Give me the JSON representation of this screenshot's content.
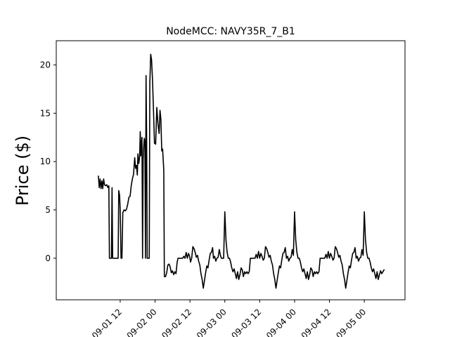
{
  "chart_data": {
    "type": "line",
    "title": "NodeMCC: NAVY35R_7_B1",
    "ylabel": "Price ($)",
    "xlabel": "",
    "x_unit": "hours since 2023-09-01 00",
    "xlim": [
      -10,
      110
    ],
    "ylim": [
      -4.3,
      22.5
    ],
    "grid": false,
    "legend": "none",
    "line_color": "#000000",
    "yticks": [
      0,
      5,
      10,
      15,
      20
    ],
    "xticks": [
      {
        "x": 12,
        "label": "09-01 12"
      },
      {
        "x": 24,
        "label": "09-02 00"
      },
      {
        "x": 36,
        "label": "09-02 12"
      },
      {
        "x": 48,
        "label": "09-03 00"
      },
      {
        "x": 60,
        "label": "09-03 12"
      },
      {
        "x": 72,
        "label": "09-04 00"
      },
      {
        "x": 84,
        "label": "09-04 12"
      },
      {
        "x": 96,
        "label": "09-05 00"
      }
    ],
    "series": [
      {
        "name": "",
        "points": [
          [
            4.5,
            8.5
          ],
          [
            4.8,
            7.3
          ],
          [
            5.1,
            8.2
          ],
          [
            5.4,
            7.2
          ],
          [
            5.7,
            8.0
          ],
          [
            6.0,
            7.2
          ],
          [
            6.3,
            8.2
          ],
          [
            6.6,
            7.6
          ],
          [
            7.0,
            7.5
          ],
          [
            7.4,
            7.6
          ],
          [
            7.8,
            7.3
          ],
          [
            8.1,
            7.5
          ],
          [
            8.3,
            0
          ],
          [
            9.0,
            0
          ],
          [
            9.2,
            7.3
          ],
          [
            9.4,
            0
          ],
          [
            11.3,
            0
          ],
          [
            11.5,
            7.0
          ],
          [
            11.8,
            6.5
          ],
          [
            12.0,
            5.0
          ],
          [
            12.3,
            0
          ],
          [
            12.6,
            0
          ],
          [
            12.9,
            4.7
          ],
          [
            13.3,
            5.0
          ],
          [
            13.8,
            4.9
          ],
          [
            14.2,
            5.1
          ],
          [
            14.6,
            5.6
          ],
          [
            15.0,
            6.3
          ],
          [
            15.4,
            6.4
          ],
          [
            15.8,
            7.5
          ],
          [
            16.2,
            8.2
          ],
          [
            16.6,
            8.7
          ],
          [
            17.0,
            10.4
          ],
          [
            17.3,
            9.3
          ],
          [
            17.6,
            9.6
          ],
          [
            17.9,
            8.6
          ],
          [
            18.1,
            10.8
          ],
          [
            18.4,
            9.8
          ],
          [
            18.7,
            10.5
          ],
          [
            18.9,
            13.1
          ],
          [
            19.1,
            10.6
          ],
          [
            19.3,
            11.8
          ],
          [
            19.5,
            12.5
          ],
          [
            19.7,
            0
          ],
          [
            19.9,
            10.2
          ],
          [
            20.1,
            11.6
          ],
          [
            20.3,
            12.4
          ],
          [
            20.5,
            12.0
          ],
          [
            20.7,
            0
          ],
          [
            20.9,
            18.9
          ],
          [
            21.1,
            12.1
          ],
          [
            21.3,
            0
          ],
          [
            22.0,
            0
          ],
          [
            22.2,
            18.1
          ],
          [
            22.5,
            21.1
          ],
          [
            22.8,
            20.5
          ],
          [
            23.1,
            18.6
          ],
          [
            23.4,
            15.9
          ],
          [
            23.8,
            11.9
          ],
          [
            24.2,
            11.8
          ],
          [
            24.6,
            15.6
          ],
          [
            25.0,
            13.9
          ],
          [
            25.4,
            12.9
          ],
          [
            25.7,
            15.3
          ],
          [
            26.0,
            14.4
          ],
          [
            26.3,
            11.1
          ],
          [
            26.6,
            11.3
          ],
          [
            27.0,
            9.1
          ],
          [
            27.2,
            -1.9
          ],
          [
            27.6,
            -1.9
          ],
          [
            28.0,
            -1.5
          ],
          [
            28.4,
            -0.7
          ],
          [
            28.8,
            -0.6
          ],
          [
            29.2,
            -0.9
          ],
          [
            29.6,
            -1.5
          ],
          [
            30.0,
            -1.3
          ],
          [
            30.4,
            -1.7
          ],
          [
            30.8,
            -1.4
          ],
          [
            31.2,
            -1.6
          ],
          [
            31.6,
            -0.4
          ],
          [
            31.9,
            0
          ],
          [
            32.3,
            0
          ],
          [
            32.7,
            0
          ],
          [
            33.1,
            0
          ],
          [
            33.5,
            0
          ],
          [
            33.9,
            0.2
          ],
          [
            34.3,
            0
          ],
          [
            34.7,
            0.6
          ],
          [
            35.1,
            0
          ],
          [
            35.5,
            0.5
          ],
          [
            35.9,
            0.2
          ],
          [
            36.2,
            -0.4
          ],
          [
            36.6,
            0
          ],
          [
            37.0,
            1.2
          ],
          [
            37.4,
            1.0
          ],
          [
            37.8,
            0.6
          ],
          [
            38.2,
            0.1
          ],
          [
            38.6,
            0.3
          ],
          [
            39.0,
            -0.3
          ],
          [
            39.4,
            -0.7
          ],
          [
            39.8,
            -1.6
          ],
          [
            40.2,
            -2.2
          ],
          [
            40.6,
            -3.1
          ],
          [
            41.0,
            -2.3
          ],
          [
            41.4,
            -1.5
          ],
          [
            41.8,
            -0.8
          ],
          [
            42.2,
            -1.0
          ],
          [
            42.6,
            -0.2
          ],
          [
            43.0,
            0.5
          ],
          [
            43.4,
            0.6
          ],
          [
            43.8,
            1.1
          ],
          [
            44.1,
            0
          ],
          [
            44.5,
            0.2
          ],
          [
            44.9,
            -0.3
          ],
          [
            45.3,
            0
          ],
          [
            45.7,
            0.1
          ],
          [
            46.1,
            0.9
          ],
          [
            46.5,
            0.3
          ],
          [
            46.8,
            0
          ],
          [
            47.2,
            0
          ],
          [
            47.6,
            0
          ],
          [
            48.0,
            4.8
          ],
          [
            48.4,
            1.9
          ],
          [
            48.8,
            0.6
          ],
          [
            49.2,
            0
          ],
          [
            49.6,
            0
          ],
          [
            50.0,
            -0.4
          ],
          [
            50.4,
            -1.0
          ],
          [
            50.8,
            -1.4
          ],
          [
            51.2,
            -1.1
          ],
          [
            51.6,
            -1.6
          ],
          [
            52.0,
            -2.1
          ],
          [
            52.4,
            -1.4
          ],
          [
            52.8,
            -2.2
          ],
          [
            53.2,
            -1.7
          ],
          [
            53.6,
            -1.0
          ],
          [
            54.0,
            -1.2
          ],
          [
            54.4,
            -1.9
          ],
          [
            54.8,
            -1.4
          ],
          [
            55.2,
            -1.6
          ],
          [
            55.6,
            -1.4
          ],
          [
            56.0,
            -1.6
          ],
          [
            56.4,
            -1.4
          ],
          [
            56.8,
            0
          ],
          [
            57.2,
            0
          ],
          [
            57.6,
            0
          ],
          [
            58.0,
            0
          ],
          [
            58.4,
            0
          ],
          [
            58.8,
            0.4
          ],
          [
            59.2,
            0
          ],
          [
            59.6,
            0.7
          ],
          [
            60.0,
            0
          ],
          [
            60.4,
            0.5
          ],
          [
            60.8,
            0.2
          ],
          [
            61.2,
            -0.2
          ],
          [
            61.6,
            0
          ],
          [
            62.0,
            1.2
          ],
          [
            62.4,
            1.0
          ],
          [
            62.8,
            0.6
          ],
          [
            63.2,
            0.1
          ],
          [
            63.6,
            0.3
          ],
          [
            64.0,
            -0.3
          ],
          [
            64.4,
            -0.7
          ],
          [
            64.8,
            -1.6
          ],
          [
            65.2,
            -2.2
          ],
          [
            65.6,
            -3.1
          ],
          [
            66.0,
            -2.3
          ],
          [
            66.4,
            -1.5
          ],
          [
            66.8,
            -0.8
          ],
          [
            67.2,
            -1.0
          ],
          [
            67.6,
            -0.2
          ],
          [
            68.0,
            0.5
          ],
          [
            68.4,
            0.6
          ],
          [
            68.8,
            1.1
          ],
          [
            69.2,
            0
          ],
          [
            69.6,
            0.2
          ],
          [
            70.0,
            -0.3
          ],
          [
            70.4,
            0
          ],
          [
            70.8,
            0.1
          ],
          [
            71.2,
            0.9
          ],
          [
            71.6,
            0.3
          ],
          [
            72.0,
            4.8
          ],
          [
            72.4,
            1.9
          ],
          [
            72.8,
            0.6
          ],
          [
            73.2,
            0
          ],
          [
            73.6,
            0
          ],
          [
            74.0,
            -0.4
          ],
          [
            74.4,
            -1.0
          ],
          [
            74.8,
            -1.4
          ],
          [
            75.2,
            -1.1
          ],
          [
            75.6,
            -1.6
          ],
          [
            76.0,
            -2.1
          ],
          [
            76.4,
            -1.4
          ],
          [
            76.8,
            -2.2
          ],
          [
            77.2,
            -1.7
          ],
          [
            77.6,
            -1.0
          ],
          [
            78.0,
            -1.2
          ],
          [
            78.4,
            -1.9
          ],
          [
            78.8,
            -1.4
          ],
          [
            79.2,
            -1.6
          ],
          [
            79.6,
            -1.4
          ],
          [
            80.0,
            -1.6
          ],
          [
            80.4,
            -1.4
          ],
          [
            80.8,
            0
          ],
          [
            81.2,
            0
          ],
          [
            81.6,
            0
          ],
          [
            82.0,
            0
          ],
          [
            82.4,
            0
          ],
          [
            82.8,
            0.4
          ],
          [
            83.2,
            0
          ],
          [
            83.6,
            0.7
          ],
          [
            84.0,
            0
          ],
          [
            84.4,
            0.5
          ],
          [
            84.8,
            0.2
          ],
          [
            85.2,
            -0.2
          ],
          [
            85.6,
            0
          ],
          [
            86.0,
            1.2
          ],
          [
            86.4,
            1.0
          ],
          [
            86.8,
            0.6
          ],
          [
            87.2,
            0.1
          ],
          [
            87.6,
            0.3
          ],
          [
            88.0,
            -0.3
          ],
          [
            88.4,
            -0.7
          ],
          [
            88.8,
            -1.6
          ],
          [
            89.2,
            -2.2
          ],
          [
            89.6,
            -3.1
          ],
          [
            90.0,
            -2.3
          ],
          [
            90.4,
            -1.5
          ],
          [
            90.8,
            -0.8
          ],
          [
            91.2,
            -1.0
          ],
          [
            91.6,
            -0.2
          ],
          [
            92.0,
            0.5
          ],
          [
            92.4,
            0.6
          ],
          [
            92.8,
            1.1
          ],
          [
            93.2,
            0
          ],
          [
            93.6,
            0.2
          ],
          [
            94.0,
            -0.3
          ],
          [
            94.4,
            0
          ],
          [
            94.8,
            0.1
          ],
          [
            95.2,
            0.9
          ],
          [
            95.6,
            0.3
          ],
          [
            96.0,
            4.8
          ],
          [
            96.4,
            1.9
          ],
          [
            96.8,
            0.6
          ],
          [
            97.2,
            0
          ],
          [
            97.6,
            0
          ],
          [
            98.0,
            -0.4
          ],
          [
            98.4,
            -1.0
          ],
          [
            98.8,
            -1.4
          ],
          [
            99.2,
            -1.1
          ],
          [
            99.6,
            -1.6
          ],
          [
            100.0,
            -2.1
          ],
          [
            100.4,
            -1.4
          ],
          [
            100.8,
            -2.2
          ],
          [
            101.2,
            -1.7
          ],
          [
            101.6,
            -1.3
          ],
          [
            102.0,
            -1.6
          ],
          [
            102.4,
            -1.4
          ],
          [
            102.8,
            -1.2
          ]
        ]
      }
    ]
  }
}
